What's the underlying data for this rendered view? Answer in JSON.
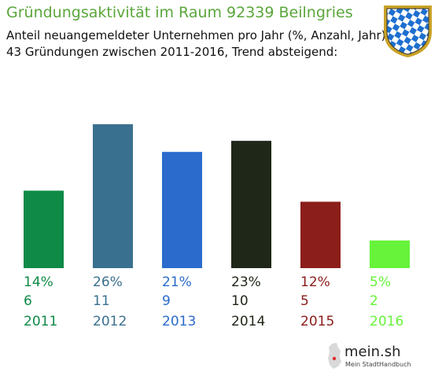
{
  "header": {
    "title": "Gründungsaktivität im Raum 92339 Beilngries",
    "subtitle_line1": "Anteil neuangemeldeter Unternehmen pro Jahr (%, Anzahl, Jahr)",
    "subtitle_line2": "43 Gründungen zwischen 2011-2016, Trend absteigend:"
  },
  "branding": {
    "name": "mein.sh",
    "tagline": "Mein StadtHandbuch"
  },
  "crest_icon": "bavarian-lozenge-crest-icon",
  "chart_data": {
    "type": "bar",
    "categories": [
      "2011",
      "2012",
      "2013",
      "2014",
      "2015",
      "2016"
    ],
    "values": [
      14,
      26,
      21,
      23,
      12,
      5
    ],
    "percent_labels": [
      "14%",
      "26%",
      "21%",
      "23%",
      "12%",
      "5%"
    ],
    "counts": [
      "6",
      "11",
      "9",
      "10",
      "5",
      "2"
    ],
    "colors": [
      "#0f8a47",
      "#3a708f",
      "#2a6bcc",
      "#1f2718",
      "#8b1e1a",
      "#66f33a"
    ],
    "ylim": [
      0,
      26
    ]
  }
}
